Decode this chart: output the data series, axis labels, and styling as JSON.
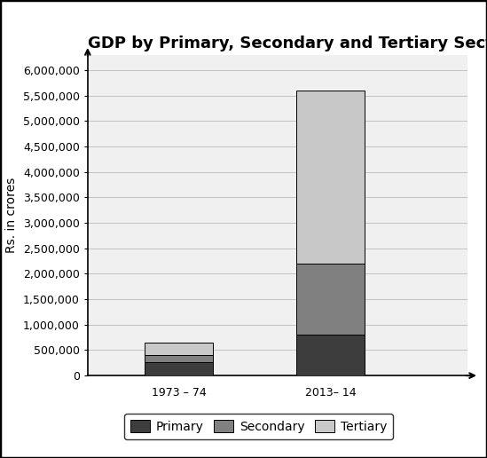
{
  "title": "GDP by Primary, Secondary and Tertiary Sectors",
  "ylabel": "Rs. in crores",
  "categories": [
    "1973 – 74",
    "2013– 14"
  ],
  "primary": [
    260000,
    800000
  ],
  "secondary": [
    140000,
    1400000
  ],
  "tertiary": [
    240000,
    3400000
  ],
  "color_primary": "#3d3d3d",
  "color_secondary": "#808080",
  "color_tertiary": "#c8c8c8",
  "ylim": [
    0,
    6300000
  ],
  "yticks": [
    0,
    500000,
    1000000,
    1500000,
    2000000,
    2500000,
    3000000,
    3500000,
    4000000,
    4500000,
    5000000,
    5500000,
    6000000
  ],
  "bar_width": 0.45,
  "background_color": "#ffffff",
  "plot_bg_color": "#f0f0f0",
  "edge_color": "#000000",
  "title_fontsize": 13,
  "label_fontsize": 10,
  "tick_fontsize": 9,
  "legend_fontsize": 10,
  "grid_color": "#bbbbbb"
}
